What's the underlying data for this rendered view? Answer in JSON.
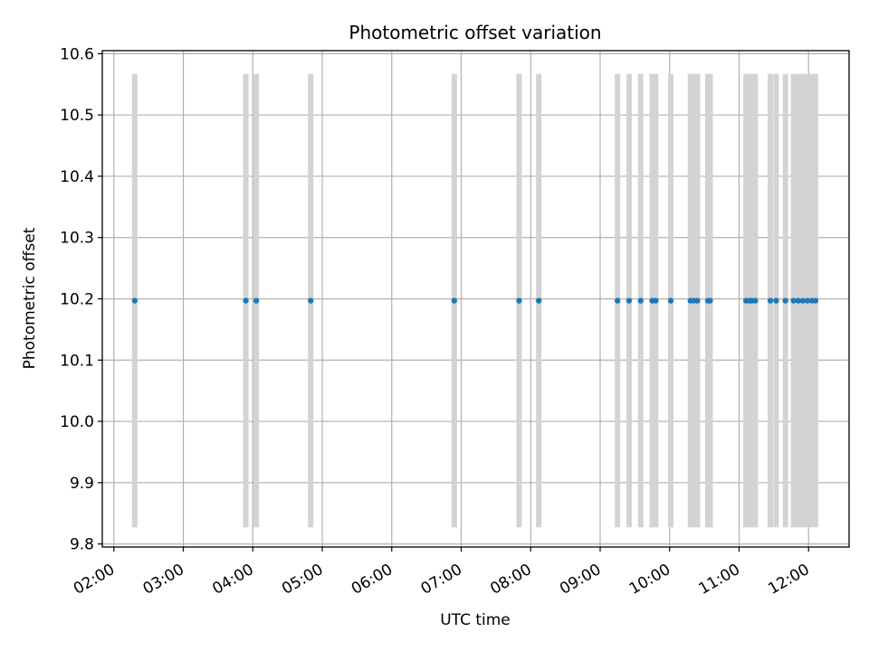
{
  "chart_data": {
    "type": "scatter",
    "title": "Photometric offset variation",
    "xlabel": "UTC time",
    "ylabel": "Photometric offset",
    "xlim": [
      "01:50",
      "12:35"
    ],
    "ylim": [
      9.795,
      10.605
    ],
    "grid": true,
    "x_ticks": [
      "02:00",
      "03:00",
      "04:00",
      "05:00",
      "06:00",
      "07:00",
      "08:00",
      "09:00",
      "10:00",
      "11:00",
      "12:00"
    ],
    "y_ticks": [
      "9.8",
      "9.9",
      "10.0",
      "10.1",
      "10.2",
      "10.3",
      "10.4",
      "10.5",
      "10.6"
    ],
    "error_bar_color": "#d3d3d3",
    "point_color": "#1f77b4",
    "error": 0.37,
    "series": [
      {
        "x": [
          "02:18",
          "03:54",
          "04:03",
          "04:50",
          "06:54",
          "07:50",
          "08:07",
          "09:15",
          "09:25",
          "09:35",
          "09:45",
          "09:48",
          "10:01",
          "10:18",
          "10:21",
          "10:24",
          "10:33",
          "10:35",
          "11:06",
          "11:09",
          "11:11",
          "11:14",
          "11:27",
          "11:32",
          "11:40",
          "11:47",
          "11:51",
          "11:55",
          "11:59",
          "12:03",
          "12:06"
        ],
        "y": [
          10.197,
          10.197,
          10.197,
          10.197,
          10.197,
          10.197,
          10.197,
          10.197,
          10.197,
          10.197,
          10.197,
          10.197,
          10.197,
          10.197,
          10.197,
          10.197,
          10.197,
          10.197,
          10.197,
          10.197,
          10.197,
          10.197,
          10.197,
          10.197,
          10.197,
          10.197,
          10.197,
          10.197,
          10.197,
          10.197,
          10.197
        ]
      }
    ]
  }
}
